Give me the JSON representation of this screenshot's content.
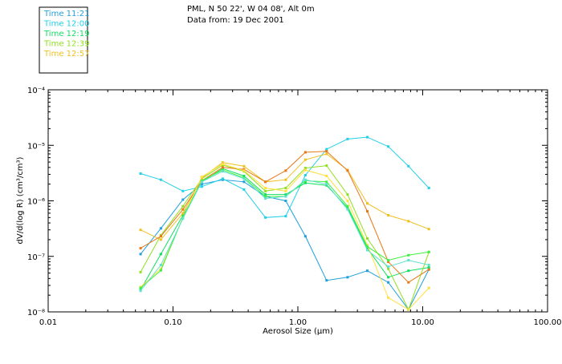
{
  "header": {
    "line1": "PML, N 50 22', W 04 08', Alt 0m",
    "line2": "Data from: 19 Dec 2001"
  },
  "chart_data": {
    "type": "line",
    "xscale": "log",
    "yscale": "log",
    "xlim": [
      0.01,
      100.0
    ],
    "ylim": [
      1e-08,
      0.0001
    ],
    "xlabel": "Aerosol Size (μm)",
    "ylabel": "dV/d(log R)  (cm³/cm³)",
    "x_ticklabels": [
      "0.01",
      "0.10",
      "1.00",
      "10.00",
      "100.00"
    ],
    "y_ticklabels": [
      "10⁻⁸",
      "10⁻⁷",
      "10⁻⁶",
      "10⁻⁵",
      "10⁻⁴"
    ],
    "legend_position": "top-left",
    "series": [
      {
        "name": "Time 11:21",
        "color": "#1f9fdc",
        "type": "line",
        "x": [
          0.055,
          0.08,
          0.12,
          0.17,
          0.25,
          0.37,
          0.55,
          0.8,
          1.15,
          1.7,
          2.5,
          3.6,
          5.3,
          7.7,
          11.2
        ],
        "y": [
          1.1e-07,
          3.2e-07,
          1.05e-06,
          2e-06,
          2.4e-06,
          2.2e-06,
          1.2e-06,
          1e-06,
          2.3e-07,
          3.7e-08,
          4.2e-08,
          5.5e-08,
          3.4e-08,
          1.1e-08,
          5.8e-08
        ]
      },
      {
        "name": "Time 12:00",
        "color": "#22d0e8",
        "type": "line",
        "x": [
          0.055,
          0.08,
          0.12,
          0.17,
          0.25,
          0.37,
          0.55,
          0.8,
          1.15,
          1.7,
          2.5,
          3.6,
          5.3,
          7.7,
          11.2
        ],
        "y": [
          3.1e-06,
          2.4e-06,
          1.5e-06,
          1.8e-06,
          2.5e-06,
          1.6e-06,
          5e-07,
          5.3e-07,
          2.9e-06,
          8.5e-06,
          1.3e-05,
          1.4e-05,
          9.5e-06,
          4.2e-06,
          1.7e-06
        ]
      },
      {
        "name": "Time 12:19",
        "color": "#10e060",
        "type": "line",
        "x": [
          0.055,
          0.08,
          0.12,
          0.17,
          0.25,
          0.37,
          0.55,
          0.8,
          1.15,
          1.7,
          2.5,
          3.6,
          5.3,
          7.7,
          11.2
        ],
        "y": [
          2.5e-08,
          1.1e-07,
          5.5e-07,
          2.2e-06,
          3.8e-06,
          2.8e-06,
          1.3e-06,
          1.3e-06,
          2.1e-06,
          1.9e-06,
          7.5e-07,
          1.4e-07,
          4.2e-08,
          5.5e-08,
          6.3e-08
        ]
      },
      {
        "name": "Time 12:39",
        "color": "#90e020",
        "type": "line",
        "x": [
          0.055,
          0.08,
          0.12,
          0.17,
          0.25,
          0.37,
          0.55,
          0.8,
          1.15,
          1.7,
          2.5,
          3.6,
          5.3,
          7.7,
          11.2
        ],
        "y": [
          5.2e-08,
          2.4e-07,
          8e-07,
          2.5e-06,
          4.4e-06,
          3.4e-06,
          1.5e-06,
          1.7e-06,
          3.9e-06,
          4.3e-06,
          1.3e-06,
          2.1e-07,
          6e-08,
          1.1e-08,
          1.2e-07
        ]
      },
      {
        "name": "Time 12:57",
        "color": "#f0c020",
        "type": "line",
        "x": [
          0.055,
          0.08,
          0.12,
          0.17,
          0.25,
          0.37,
          0.55,
          0.8,
          1.15,
          1.7,
          2.5,
          3.6,
          5.3,
          7.7,
          11.2
        ],
        "y": [
          3e-07,
          2e-07,
          6e-07,
          2.6e-06,
          4.9e-06,
          4.2e-06,
          2.2e-06,
          2.4e-06,
          5.5e-06,
          7e-06,
          3.6e-06,
          9e-07,
          5.5e-07,
          4.3e-07,
          3.1e-07
        ]
      },
      {
        "name": "",
        "color": "#e87818",
        "type": "line",
        "x": [
          0.055,
          0.08,
          0.12,
          0.17,
          0.25,
          0.37,
          0.55,
          0.8,
          1.15,
          1.7,
          2.5,
          3.6,
          5.3,
          7.7,
          11.2
        ],
        "y": [
          1.4e-07,
          2.3e-07,
          7e-07,
          2.3e-06,
          4e-06,
          3.7e-06,
          2.2e-06,
          3.5e-06,
          7.5e-06,
          7.8e-06,
          3.5e-06,
          6.5e-07,
          8e-08,
          3.4e-08,
          5.8e-08
        ]
      },
      {
        "name": "",
        "color": "#ffe040",
        "type": "line",
        "x": [
          0.055,
          0.08,
          0.12,
          0.17,
          0.25,
          0.37,
          0.55,
          0.8,
          1.15,
          1.7,
          2.5,
          3.6,
          5.3,
          7.7,
          11.2
        ],
        "y": [
          2.8e-08,
          6e-08,
          5e-07,
          2.7e-06,
          4.6e-06,
          3.5e-06,
          1.7e-06,
          1.5e-06,
          3.6e-06,
          2.8e-06,
          1e-06,
          1.6e-07,
          1.8e-08,
          1.1e-08,
          2.7e-08
        ]
      },
      {
        "name": "",
        "color": "#40f040",
        "type": "line",
        "x": [
          0.055,
          0.08,
          0.12,
          0.17,
          0.25,
          0.37,
          0.55,
          0.8,
          1.15,
          1.7,
          2.5,
          3.6,
          5.3,
          7.7,
          11.2
        ],
        "y": [
          2.7e-08,
          5.6e-08,
          5e-07,
          2.3e-06,
          3.6e-06,
          2.6e-06,
          1.2e-06,
          1.2e-06,
          2.3e-06,
          2.2e-06,
          8e-07,
          1.5e-07,
          8.5e-08,
          1.05e-07,
          1.2e-07
        ]
      },
      {
        "name": "",
        "color": "#60e0d0",
        "type": "line",
        "x": [
          0.055,
          0.08,
          0.12,
          0.17,
          0.25,
          0.37,
          0.55,
          0.8,
          1.15,
          1.7,
          2.5,
          3.6,
          5.3,
          7.7,
          11.2
        ],
        "y": [
          2.4e-08,
          7e-08,
          4.8e-07,
          2.2e-06,
          3.4e-06,
          2.5e-06,
          1.1e-06,
          1.2e-06,
          2.4e-06,
          2e-06,
          7e-07,
          1.3e-07,
          6.5e-08,
          8.5e-08,
          7e-08
        ]
      }
    ]
  }
}
